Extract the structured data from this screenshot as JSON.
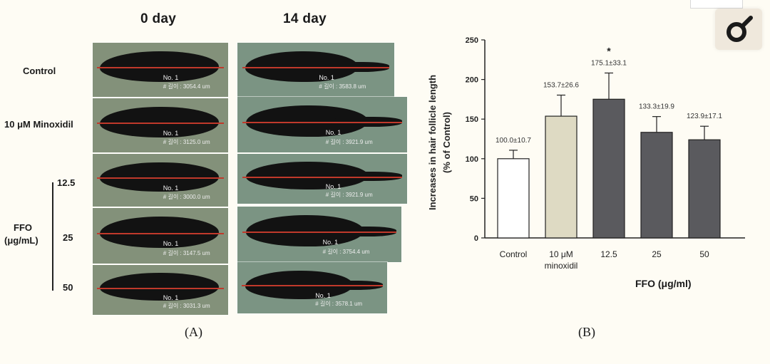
{
  "panel_a": {
    "col_0day": "0 day",
    "col_14day": "14 day",
    "rows": {
      "control": "Control",
      "minoxidil": "10 μM Minoxidil",
      "c125": "12.5",
      "c25": "25",
      "c50": "50",
      "ffo_line1": "FFO",
      "ffo_line2": "(μg/mL)"
    },
    "images": [
      {
        "no": "No. 1",
        "meas": "# 길이 : 3054.4 um"
      },
      {
        "no": "No. 1",
        "meas": "# 길이 : 3583.8 um"
      },
      {
        "no": "No. 1",
        "meas": "# 길이 : 3125.0 um"
      },
      {
        "no": "No. 1",
        "meas": "# 길이 : 3921.9 um"
      },
      {
        "no": "No. 1",
        "meas": "# 길이 : 3000.0 um"
      },
      {
        "no": "No. 1",
        "meas": "# 길이 : 3921.9 um"
      },
      {
        "no": "No. 1",
        "meas": "# 길이 : 3147.5 um"
      },
      {
        "no": "No. 1",
        "meas": "# 길이 : 3754.4 um"
      },
      {
        "no": "No. 1",
        "meas": "# 길이 : 3031.3 um"
      },
      {
        "no": "No. 1",
        "meas": "# 길이 : 3578.1 um"
      }
    ],
    "label": "(A)"
  },
  "panel_b": {
    "label": "(B)",
    "xgroup": "FFO (μg/ml)"
  },
  "chart_data": {
    "type": "bar",
    "categories": [
      "Control",
      "10 μM minoxidil",
      "12.5",
      "25",
      "50"
    ],
    "category_lines": [
      [
        "Control"
      ],
      [
        "10 μM",
        "minoxidil"
      ],
      [
        "12.5"
      ],
      [
        "25"
      ],
      [
        "50"
      ]
    ],
    "values": [
      100.0,
      153.7,
      175.1,
      133.3,
      123.9
    ],
    "errors": [
      10.7,
      26.6,
      33.1,
      19.9,
      17.1
    ],
    "data_labels": [
      "100.0±10.7",
      "153.7±26.6",
      "175.1±33.1",
      "133.3±19.9",
      "123.9±17.1"
    ],
    "bar_colors": [
      "#ffffff",
      "#dedac3",
      "#5a5a5e",
      "#5a5a5e",
      "#5a5a5e"
    ],
    "significance": [
      "",
      "",
      "*",
      "",
      ""
    ],
    "ylabel_line1": "Increases in hair follicle length",
    "ylabel_line2": "(% of Control)",
    "ylim": [
      0,
      250
    ],
    "yticks": [
      0,
      50,
      100,
      150,
      200,
      250
    ]
  }
}
